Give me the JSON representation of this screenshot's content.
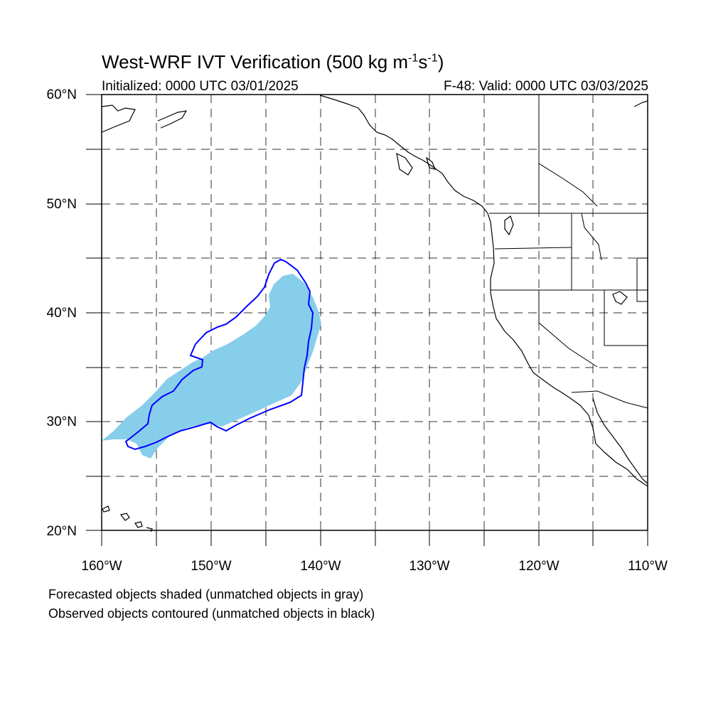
{
  "map": {
    "title_main": "West-WRF IVT Verification (500 kg m",
    "title_exp1": "-1",
    "title_mid": "s",
    "title_exp2": "-1",
    "title_end": ")",
    "initialized_label": "Initialized: 0000 UTC 03/01/2025",
    "valid_label": "F-48: Valid: 0000 UTC 03/03/2025",
    "lat_labels": [
      "60°N",
      "50°N",
      "40°N",
      "30°N",
      "20°N"
    ],
    "lon_labels": [
      "160°W",
      "150°W",
      "140°W",
      "130°W",
      "120°W",
      "110°W"
    ],
    "lat_range": [
      20,
      60
    ],
    "lon_range": [
      -160,
      -110
    ],
    "grid": "dashed every 5°",
    "forecast_color": "#87ceeb",
    "observed_color": "#0000ff",
    "coast_color": "#000000"
  },
  "legend": {
    "line1": "Forecasted objects shaded (unmatched objects in gray)",
    "line2": "Observed objects contoured (unmatched objects in black)"
  }
}
